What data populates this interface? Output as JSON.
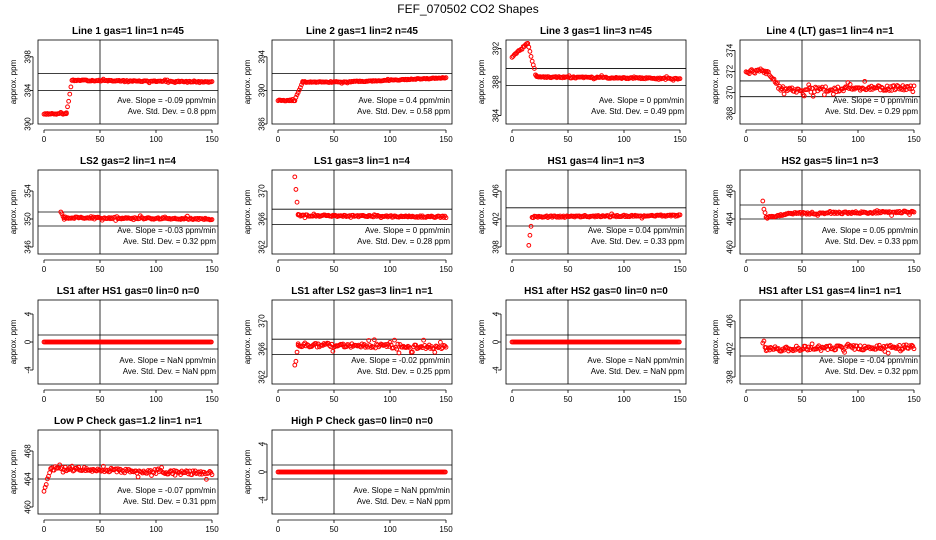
{
  "figure_title": "FEF_070502  CO2 Shapes",
  "chart_data": [
    {
      "type": "scatter",
      "title": "Line 1 gas=1 lin=1 n=45",
      "ylabel": "approx. ppm",
      "xlim": [
        0,
        150
      ],
      "ylim": [
        390,
        400
      ],
      "xticks": [
        0,
        50,
        100,
        150
      ],
      "yticks": [
        390,
        394,
        398
      ],
      "hlines": [
        394,
        396
      ],
      "vline": 50,
      "color": "#ff0000",
      "stats": [
        "Ave. Slope =  -0.09  ppm/min",
        "Ave. Std. Dev. =  0.8  ppm"
      ],
      "segments": [
        [
          0,
          20,
          391.2,
          391.2
        ],
        [
          20,
          25,
          391.2,
          395.2
        ],
        [
          25,
          150,
          395.2,
          395.0
        ]
      ],
      "noise": 0.06
    },
    {
      "type": "scatter",
      "title": "Line 2 gas=1 lin=2 n=45",
      "ylabel": "approx. ppm",
      "xlim": [
        0,
        150
      ],
      "ylim": [
        386,
        396
      ],
      "xticks": [
        0,
        50,
        100,
        150
      ],
      "yticks": [
        386,
        390,
        394
      ],
      "hlines": [
        390,
        392
      ],
      "vline": 50,
      "color": "#ff0000",
      "stats": [
        "Ave. Slope =  0.4  ppm/min",
        "Ave. Std. Dev. =  0.58  ppm"
      ],
      "segments": [
        [
          0,
          15,
          388.8,
          388.8
        ],
        [
          15,
          22,
          388.8,
          391.0
        ],
        [
          22,
          60,
          391.0,
          391.0
        ],
        [
          60,
          150,
          391.0,
          391.5
        ]
      ],
      "noise": 0.06
    },
    {
      "type": "scatter",
      "title": "Line 3 gas=1 lin=3 n=45",
      "ylabel": "approx. ppm",
      "xlim": [
        0,
        150
      ],
      "ylim": [
        383,
        393
      ],
      "xticks": [
        0,
        50,
        100,
        150
      ],
      "yticks": [
        384,
        388,
        392
      ],
      "hlines": [
        387.6,
        389.6
      ],
      "vline": 50,
      "color": "#ff0000",
      "stats": [
        "Ave. Slope =  0  ppm/min",
        "Ave. Std. Dev. =  0.49  ppm"
      ],
      "segments": [
        [
          0,
          14,
          391.0,
          392.6
        ],
        [
          14,
          22,
          392.6,
          388.6
        ],
        [
          22,
          150,
          388.6,
          388.4
        ]
      ],
      "noise": 0.08
    },
    {
      "type": "scatter",
      "title": "Line 4 (LT) gas=1 lin=4 n=1",
      "ylabel": "approx. ppm",
      "xlim": [
        0,
        150
      ],
      "ylim": [
        367,
        375
      ],
      "xticks": [
        0,
        50,
        100,
        150
      ],
      "yticks": [
        368,
        370,
        372,
        374
      ],
      "hlines": [
        369.6,
        371.1
      ],
      "vline": 50,
      "color": "#ff0000",
      "stats": [
        "Ave. Slope =  0  ppm/min",
        "Ave. Std. Dev. =  0.29  ppm"
      ],
      "segments": [
        [
          0,
          18,
          372.0,
          372.0
        ],
        [
          18,
          32,
          372.0,
          370.2
        ],
        [
          32,
          150,
          370.2,
          370.5
        ]
      ],
      "noise": 0.25
    },
    {
      "type": "scatter",
      "title": "LS2 gas=2 lin=1 n=4",
      "ylabel": "approx. ppm",
      "xlim": [
        0,
        150
      ],
      "ylim": [
        345,
        357
      ],
      "xticks": [
        0,
        50,
        100,
        150
      ],
      "yticks": [
        346,
        350,
        354
      ],
      "hlines": [
        349.0,
        351.0
      ],
      "vline": 50,
      "color": "#ff0000",
      "stats": [
        "Ave. Slope =  -0.03  ppm/min",
        "Ave. Std. Dev. =  0.32  ppm"
      ],
      "segments": [
        [
          15,
          18,
          351.0,
          350.2
        ],
        [
          18,
          150,
          350.2,
          350.0
        ]
      ],
      "noise": 0.12
    },
    {
      "type": "scatter",
      "title": "LS1 gas=3 lin=1 n=4",
      "ylabel": "approx. ppm",
      "xlim": [
        0,
        150
      ],
      "ylim": [
        361,
        373
      ],
      "xticks": [
        0,
        50,
        100,
        150
      ],
      "yticks": [
        362,
        366,
        370
      ],
      "hlines": [
        365.2,
        367.4
      ],
      "vline": 50,
      "color": "#ff0000",
      "stats": [
        "Ave. Slope =  0  ppm/min",
        "Ave. Std. Dev. =  0.28  ppm"
      ],
      "segments": [
        [
          15,
          18,
          372.0,
          366.5
        ],
        [
          18,
          150,
          366.5,
          366.3
        ]
      ],
      "noise": 0.12
    },
    {
      "type": "scatter",
      "title": "HS1 gas=4 lin=1 n=3",
      "ylabel": "approx. ppm",
      "xlim": [
        0,
        150
      ],
      "ylim": [
        397,
        409
      ],
      "xticks": [
        0,
        50,
        100,
        150
      ],
      "yticks": [
        398,
        402,
        406
      ],
      "hlines": [
        401.0,
        403.6
      ],
      "vline": 50,
      "color": "#ff0000",
      "stats": [
        "Ave. Slope =  0.04  ppm/min",
        "Ave. Std. Dev. =  0.33  ppm"
      ],
      "segments": [
        [
          15,
          18,
          398.2,
          402.3
        ],
        [
          18,
          150,
          402.3,
          402.5
        ]
      ],
      "noise": 0.12
    },
    {
      "type": "scatter",
      "title": "HS2 gas=5 lin=1 n=3",
      "ylabel": "approx. ppm",
      "xlim": [
        0,
        150
      ],
      "ylim": [
        459,
        471
      ],
      "xticks": [
        0,
        50,
        100,
        150
      ],
      "yticks": [
        460,
        464,
        468
      ],
      "hlines": [
        464.0,
        466.0
      ],
      "vline": 50,
      "color": "#ff0000",
      "stats": [
        "Ave. Slope =  0.05  ppm/min",
        "Ave. Std. Dev. =  0.33  ppm"
      ],
      "segments": [
        [
          15,
          18,
          466.5,
          464.2
        ],
        [
          18,
          40,
          464.2,
          464.8
        ],
        [
          40,
          150,
          464.8,
          465.0
        ]
      ],
      "noise": 0.15
    },
    {
      "type": "scatter",
      "title": "LS1 after HS1 gas=0 lin=0 n=0",
      "ylabel": "approx. ppm",
      "xlim": [
        0,
        150
      ],
      "ylim": [
        -6,
        6
      ],
      "xticks": [
        0,
        50,
        100,
        150
      ],
      "yticks": [
        -4,
        0,
        4
      ],
      "hlines": [
        -1,
        1
      ],
      "vline": 50,
      "color": "#ff0000",
      "stats": [
        "Ave. Slope =  NaN  ppm/min",
        "Ave. Std. Dev. =  NaN  ppm"
      ],
      "segments": [
        [
          0,
          150,
          0,
          0
        ]
      ],
      "noise": 0
    },
    {
      "type": "scatter",
      "title": "LS1 after LS2 gas=3 lin=1 n=1",
      "ylabel": "approx. ppm",
      "xlim": [
        0,
        150
      ],
      "ylim": [
        361,
        373
      ],
      "xticks": [
        0,
        50,
        100,
        150
      ],
      "yticks": [
        362,
        366,
        370
      ],
      "hlines": [
        365.2,
        367.4
      ],
      "vline": 50,
      "color": "#ff0000",
      "stats": [
        "Ave. Slope =  -0.02  ppm/min",
        "Ave. Std. Dev. =  0.25  ppm"
      ],
      "segments": [
        [
          15,
          18,
          363.0,
          366.6
        ],
        [
          18,
          150,
          366.6,
          366.3
        ]
      ],
      "noise": 0.3
    },
    {
      "type": "scatter",
      "title": "HS1 after HS2 gas=0 lin=0 n=0",
      "ylabel": "approx. ppm",
      "xlim": [
        0,
        150
      ],
      "ylim": [
        -6,
        6
      ],
      "xticks": [
        0,
        50,
        100,
        150
      ],
      "yticks": [
        -4,
        0,
        4
      ],
      "hlines": [
        -1,
        1
      ],
      "vline": 50,
      "color": "#ff0000",
      "stats": [
        "Ave. Slope =  NaN  ppm/min",
        "Ave. Std. Dev. =  NaN  ppm"
      ],
      "segments": [
        [
          0,
          150,
          0,
          0
        ]
      ],
      "noise": 0
    },
    {
      "type": "scatter",
      "title": "HS1 after LS1 gas=4 lin=1 n=1",
      "ylabel": "approx. ppm",
      "xlim": [
        0,
        150
      ],
      "ylim": [
        397,
        409
      ],
      "xticks": [
        0,
        50,
        100,
        150
      ],
      "yticks": [
        398,
        402,
        406
      ],
      "hlines": [
        401.0,
        403.6
      ],
      "vline": 50,
      "color": "#ff0000",
      "stats": [
        "Ave. Slope =  -0.04  ppm/min",
        "Ave. Std. Dev. =  0.32  ppm"
      ],
      "segments": [
        [
          15,
          18,
          403.2,
          402.0
        ],
        [
          18,
          150,
          402.0,
          402.3
        ]
      ],
      "noise": 0.35
    },
    {
      "type": "scatter",
      "title": "Low P Check gas=1.2 lin=1 n=1",
      "ylabel": "approx. ppm",
      "xlim": [
        0,
        150
      ],
      "ylim": [
        459,
        471
      ],
      "xticks": [
        0,
        50,
        100,
        150
      ],
      "yticks": [
        460,
        464,
        468
      ],
      "hlines": [
        464.0,
        466.0
      ],
      "vline": 50,
      "color": "#ff0000",
      "stats": [
        "Ave. Slope =  -0.07  ppm/min",
        "Ave. Std. Dev. =  0.31  ppm"
      ],
      "segments": [
        [
          0,
          6,
          462.5,
          465.5
        ],
        [
          6,
          150,
          465.5,
          464.8
        ]
      ],
      "noise": 0.3
    },
    {
      "type": "scatter",
      "title": "High P Check gas=0 lin=0 n=0",
      "ylabel": "approx. ppm",
      "xlim": [
        0,
        150
      ],
      "ylim": [
        -6,
        6
      ],
      "xticks": [
        0,
        50,
        100,
        150
      ],
      "yticks": [
        -4,
        0,
        4
      ],
      "hlines": [
        -1,
        1
      ],
      "vline": 50,
      "color": "#ff0000",
      "stats": [
        "Ave. Slope =  NaN  ppm/min",
        "Ave. Std. Dev. =  NaN  ppm"
      ],
      "segments": [
        [
          0,
          150,
          0,
          0
        ]
      ],
      "noise": 0
    }
  ]
}
